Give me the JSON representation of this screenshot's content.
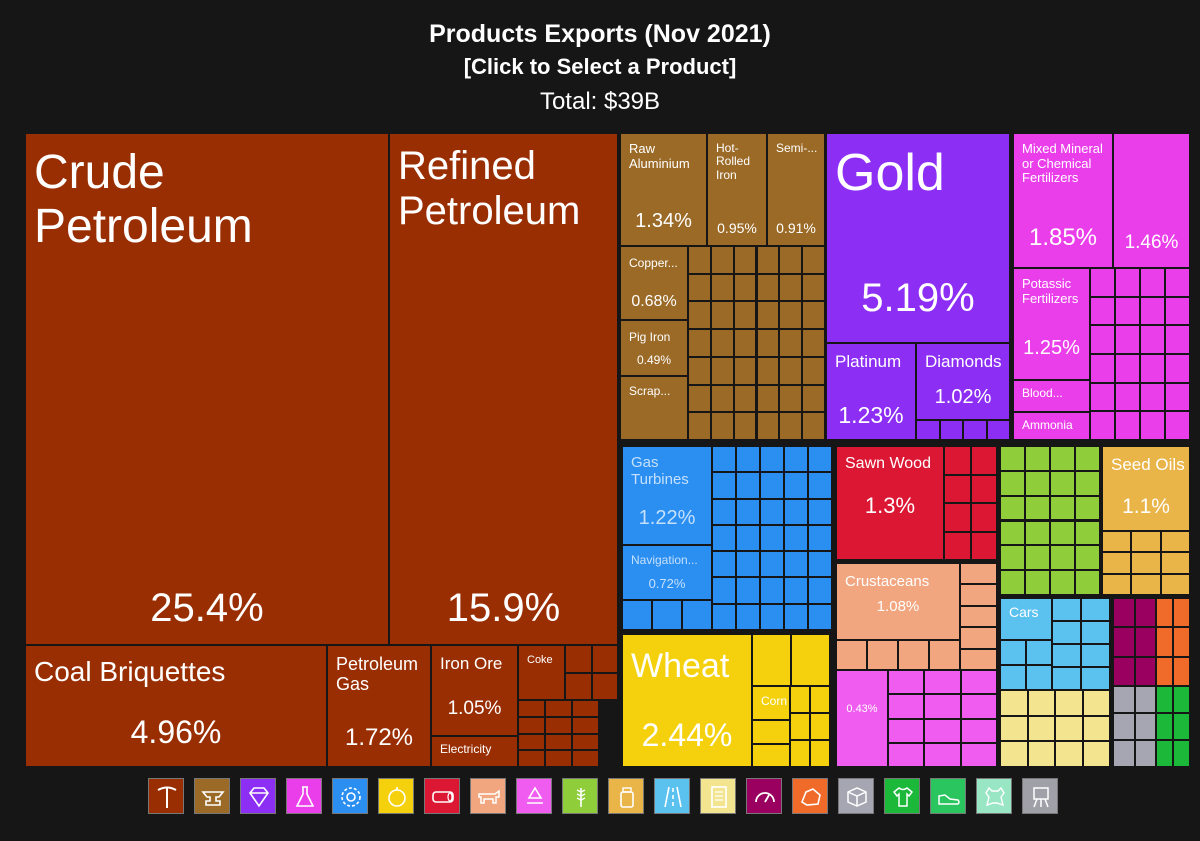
{
  "header": {
    "title": "Products Exports (Nov 2021)",
    "subtitle": "[Click to Select a Product]",
    "total": "Total: $39B"
  },
  "chart_data": {
    "type": "treemap",
    "title": "Products Exports (Nov 2021)",
    "total": "$39B",
    "categories": [
      {
        "name": "Mineral Products",
        "color": "#9A2E03"
      },
      {
        "name": "Metals",
        "color": "#9B6A27"
      },
      {
        "name": "Precious Metals",
        "color": "#8D2EF5"
      },
      {
        "name": "Chemical Products",
        "color": "#EB3EEB"
      },
      {
        "name": "Machines",
        "color": "#2B8FF2"
      },
      {
        "name": "Vegetable Products",
        "color": "#F4D10C"
      },
      {
        "name": "Wood Products",
        "color": "#DC1734"
      },
      {
        "name": "Animal Products",
        "color": "#F2A680"
      },
      {
        "name": "Plastics and Rubbers",
        "color": "#EF5CEF"
      },
      {
        "name": "Animal and Vegetable Bi-Products",
        "color": "#8FCE3A"
      },
      {
        "name": "Foodstuffs",
        "color": "#E9B448"
      },
      {
        "name": "Transportation",
        "color": "#5BC1EF"
      },
      {
        "name": "Paper Goods",
        "color": "#F3E48F"
      },
      {
        "name": "Instruments",
        "color": "#9A005F"
      },
      {
        "name": "Stone And Glass",
        "color": "#F06B2A"
      },
      {
        "name": "Miscellaneous",
        "color": "#A6A6B3"
      },
      {
        "name": "Textiles",
        "color": "#1CB83A"
      },
      {
        "name": "Footwear and Headwear",
        "color": "#2AC55E"
      },
      {
        "name": "Animal Hides",
        "color": "#98E6C4"
      },
      {
        "name": "Arts and Antiques",
        "color": "#A0A0A8"
      }
    ],
    "items": [
      {
        "name": "Crude Petroleum",
        "share": "25.4%",
        "category": "Mineral Products"
      },
      {
        "name": "Refined Petroleum",
        "share": "15.9%",
        "category": "Mineral Products"
      },
      {
        "name": "Coal Briquettes",
        "share": "4.96%",
        "category": "Mineral Products"
      },
      {
        "name": "Petroleum Gas",
        "share": "1.72%",
        "category": "Mineral Products"
      },
      {
        "name": "Iron Ore",
        "share": "1.05%",
        "category": "Mineral Products"
      },
      {
        "name": "Electricity",
        "share": "",
        "category": "Mineral Products"
      },
      {
        "name": "Coke",
        "share": "",
        "category": "Mineral Products"
      },
      {
        "name": "Raw Aluminium",
        "share": "1.34%",
        "category": "Metals"
      },
      {
        "name": "Hot-Rolled Iron",
        "share": "0.95%",
        "category": "Metals"
      },
      {
        "name": "Semi-...",
        "share": "0.91%",
        "category": "Metals"
      },
      {
        "name": "Copper...",
        "share": "0.68%",
        "category": "Metals"
      },
      {
        "name": "Pig Iron",
        "share": "0.49%",
        "category": "Metals"
      },
      {
        "name": "Scrap...",
        "share": "",
        "category": "Metals"
      },
      {
        "name": "Gold",
        "share": "5.19%",
        "category": "Precious Metals"
      },
      {
        "name": "Platinum",
        "share": "1.23%",
        "category": "Precious Metals"
      },
      {
        "name": "Diamonds",
        "share": "1.02%",
        "category": "Precious Metals"
      },
      {
        "name": "Mixed Mineral or Chemical Fertilizers",
        "share": "1.85%",
        "category": "Chemical Products"
      },
      {
        "name": "",
        "share": "1.46%",
        "category": "Chemical Products"
      },
      {
        "name": "Potassic Fertilizers",
        "share": "1.25%",
        "category": "Chemical Products"
      },
      {
        "name": "Blood...",
        "share": "",
        "category": "Chemical Products"
      },
      {
        "name": "Ammonia",
        "share": "",
        "category": "Chemical Products"
      },
      {
        "name": "Gas Turbines",
        "share": "1.22%",
        "category": "Machines"
      },
      {
        "name": "Navigation...",
        "share": "0.72%",
        "category": "Machines"
      },
      {
        "name": "Wheat",
        "share": "2.44%",
        "category": "Vegetable Products"
      },
      {
        "name": "Corn",
        "share": "",
        "category": "Vegetable Products"
      },
      {
        "name": "Sawn Wood",
        "share": "1.3%",
        "category": "Wood Products"
      },
      {
        "name": "Crustaceans",
        "share": "1.08%",
        "category": "Animal Products"
      },
      {
        "name": "",
        "share": "0.43%",
        "category": "Plastics and Rubbers"
      },
      {
        "name": "Seed Oils",
        "share": "1.1%",
        "category": "Foodstuffs"
      },
      {
        "name": "Cars",
        "share": "",
        "category": "Transportation"
      }
    ]
  }
}
